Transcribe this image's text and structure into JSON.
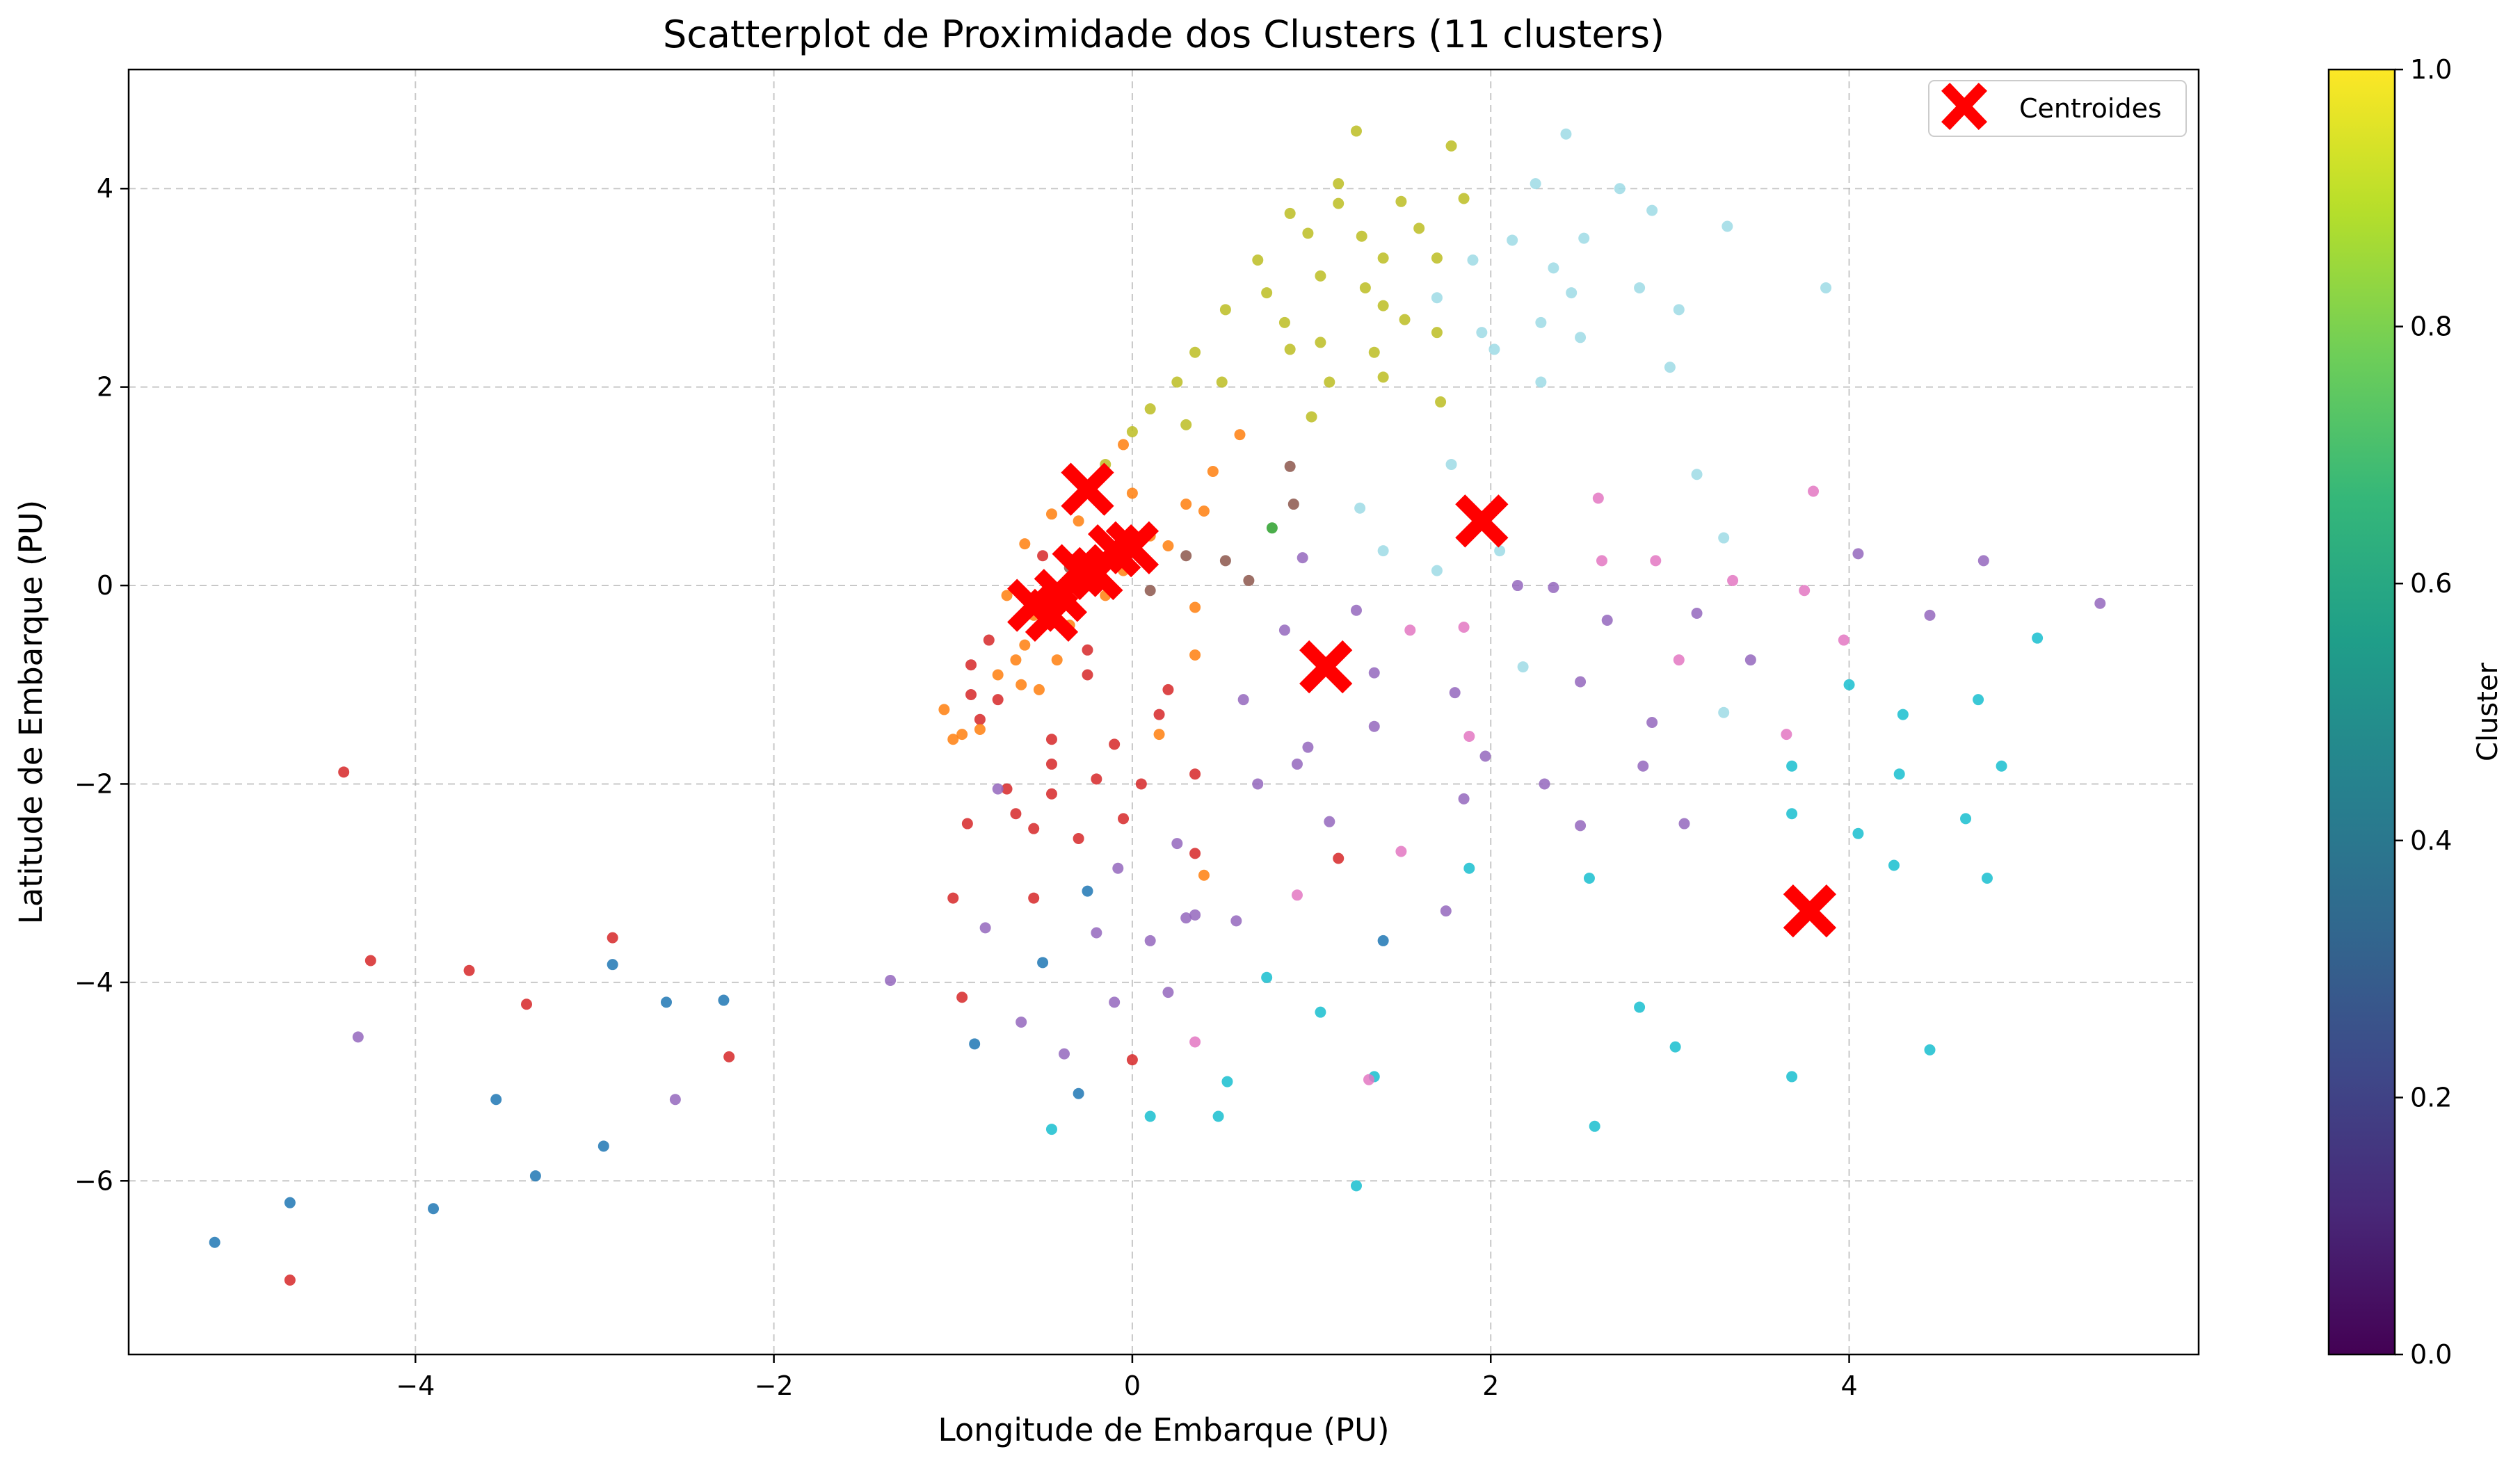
{
  "chart_data": {
    "type": "scatter",
    "title": "Scatterplot de Proximidade dos Clusters (11 clusters)",
    "xlabel": "Longitude de Embarque (PU)",
    "ylabel": "Latitude de Embarque (PU)",
    "xlim": [
      -5.6,
      5.95
    ],
    "ylim": [
      -7.75,
      5.2
    ],
    "xticks": [
      -4,
      -2,
      0,
      2,
      4
    ],
    "yticks": [
      -6,
      -4,
      -2,
      0,
      2,
      4
    ],
    "xtick_labels": [
      "−4",
      "−2",
      "0",
      "2",
      "4"
    ],
    "ytick_labels": [
      "−6",
      "−4",
      "−2",
      "0",
      "2",
      "4"
    ],
    "grid": true,
    "legend": {
      "position": "top-right",
      "entries": [
        "Centroides"
      ]
    },
    "colorbar": {
      "label": "Cluster",
      "range": [
        0,
        1
      ],
      "ticks": [
        0.0,
        0.2,
        0.4,
        0.6,
        0.8,
        1.0
      ],
      "tick_labels": [
        "0.0",
        "0.2",
        "0.4",
        "0.6",
        "0.8",
        "1.0"
      ],
      "colormap": [
        "#440154",
        "#482878",
        "#3e4989",
        "#31688e",
        "#26828e",
        "#1f9e89",
        "#35b779",
        "#6ece58",
        "#b5de2b",
        "#fde725"
      ]
    },
    "cluster_colors": {
      "red": "#d62728",
      "orange": "#ff7f0e",
      "olive": "#bcbd22",
      "lightblue": "#9edae5",
      "cyan": "#17becf",
      "purple": "#9467bd",
      "blue": "#1f77b4",
      "brown": "#8c564b",
      "pink": "#e377c2",
      "green": "#2ca02c"
    },
    "centroids": {
      "color": "#ff0000",
      "points": [
        [
          -0.25,
          0.97
        ],
        [
          -0.1,
          0.35
        ],
        [
          0.0,
          0.38
        ],
        [
          -0.3,
          0.15
        ],
        [
          -0.2,
          0.12
        ],
        [
          -0.4,
          -0.1
        ],
        [
          -0.55,
          -0.2
        ],
        [
          -0.45,
          -0.3
        ],
        [
          1.08,
          -0.82
        ],
        [
          1.95,
          0.65
        ],
        [
          3.78,
          -3.28
        ]
      ]
    },
    "series": [
      {
        "color_key": "red",
        "points": [
          [
            -4.4,
            -1.88
          ],
          [
            -4.25,
            -3.78
          ],
          [
            -3.7,
            -3.88
          ],
          [
            -3.38,
            -4.22
          ],
          [
            -2.9,
            -3.55
          ],
          [
            -2.25,
            -4.75
          ],
          [
            -4.7,
            -7.0
          ],
          [
            -0.95,
            -4.15
          ],
          [
            -1.0,
            -3.15
          ],
          [
            -0.92,
            -2.4
          ],
          [
            -0.65,
            -2.3
          ],
          [
            -0.55,
            -2.45
          ],
          [
            -0.55,
            -3.15
          ],
          [
            -0.45,
            -2.1
          ],
          [
            -0.3,
            -2.55
          ],
          [
            -0.2,
            -1.95
          ],
          [
            -0.1,
            -1.6
          ],
          [
            -0.05,
            -2.35
          ],
          [
            0.05,
            -2.0
          ],
          [
            0.0,
            -4.78
          ],
          [
            0.35,
            -2.7
          ],
          [
            0.35,
            -1.9
          ],
          [
            0.15,
            -1.3
          ],
          [
            0.2,
            -1.05
          ],
          [
            -0.45,
            -1.55
          ],
          [
            -0.25,
            -0.9
          ],
          [
            -0.25,
            -0.65
          ],
          [
            -0.5,
            0.3
          ],
          [
            -0.8,
            -0.55
          ],
          [
            -0.9,
            -0.8
          ],
          [
            -0.9,
            -1.1
          ],
          [
            -0.75,
            -1.15
          ],
          [
            -0.7,
            -2.05
          ],
          [
            1.15,
            -2.75
          ],
          [
            -0.85,
            -1.35
          ],
          [
            -0.45,
            -1.8
          ]
        ]
      },
      {
        "color_key": "orange",
        "points": [
          [
            -1.05,
            -1.25
          ],
          [
            -1.0,
            -1.55
          ],
          [
            -0.95,
            -1.5
          ],
          [
            -0.85,
            -1.45
          ],
          [
            -0.75,
            -0.9
          ],
          [
            -0.7,
            -0.1
          ],
          [
            -0.65,
            -0.75
          ],
          [
            -0.62,
            -1.0
          ],
          [
            -0.6,
            -0.6
          ],
          [
            -0.6,
            0.42
          ],
          [
            -0.55,
            -0.3
          ],
          [
            -0.52,
            -1.05
          ],
          [
            -0.45,
            0.72
          ],
          [
            -0.42,
            -0.75
          ],
          [
            -0.35,
            -0.4
          ],
          [
            -0.3,
            0.65
          ],
          [
            -0.25,
            0.05
          ],
          [
            -0.2,
            0.3
          ],
          [
            -0.15,
            -0.1
          ],
          [
            -0.05,
            1.42
          ],
          [
            0.0,
            0.93
          ],
          [
            0.1,
            0.5
          ],
          [
            0.2,
            0.4
          ],
          [
            0.3,
            0.82
          ],
          [
            0.4,
            0.75
          ],
          [
            0.35,
            -0.22
          ],
          [
            0.35,
            -0.7
          ],
          [
            0.6,
            1.52
          ],
          [
            0.4,
            -2.92
          ],
          [
            0.15,
            -1.5
          ],
          [
            0.45,
            1.15
          ],
          [
            -0.05,
            0.15
          ]
        ]
      },
      {
        "color_key": "olive",
        "points": [
          [
            -0.15,
            1.22
          ],
          [
            0.0,
            1.55
          ],
          [
            0.1,
            1.78
          ],
          [
            0.25,
            2.05
          ],
          [
            0.3,
            1.62
          ],
          [
            0.35,
            2.35
          ],
          [
            0.5,
            2.05
          ],
          [
            0.52,
            2.78
          ],
          [
            0.7,
            3.28
          ],
          [
            0.75,
            2.95
          ],
          [
            0.85,
            2.65
          ],
          [
            0.88,
            2.38
          ],
          [
            0.88,
            3.75
          ],
          [
            0.98,
            3.55
          ],
          [
            1.05,
            3.12
          ],
          [
            1.05,
            2.45
          ],
          [
            1.1,
            2.05
          ],
          [
            1.0,
            1.7
          ],
          [
            1.15,
            4.05
          ],
          [
            1.15,
            3.85
          ],
          [
            1.25,
            4.58
          ],
          [
            1.28,
            3.52
          ],
          [
            1.3,
            3.0
          ],
          [
            1.35,
            2.35
          ],
          [
            1.4,
            2.1
          ],
          [
            1.4,
            3.3
          ],
          [
            1.4,
            2.82
          ],
          [
            1.5,
            3.87
          ],
          [
            1.52,
            2.68
          ],
          [
            1.6,
            3.6
          ],
          [
            1.7,
            3.3
          ],
          [
            1.7,
            2.55
          ],
          [
            1.72,
            1.85
          ],
          [
            1.78,
            4.43
          ],
          [
            1.85,
            3.9
          ]
        ]
      },
      {
        "color_key": "lightblue",
        "points": [
          [
            1.7,
            2.9
          ],
          [
            1.78,
            1.22
          ],
          [
            1.9,
            3.28
          ],
          [
            1.95,
            2.55
          ],
          [
            2.02,
            2.38
          ],
          [
            2.12,
            3.48
          ],
          [
            2.25,
            4.05
          ],
          [
            2.28,
            2.65
          ],
          [
            2.28,
            2.05
          ],
          [
            2.35,
            3.2
          ],
          [
            2.42,
            4.55
          ],
          [
            2.45,
            2.95
          ],
          [
            2.5,
            2.5
          ],
          [
            2.52,
            3.5
          ],
          [
            2.72,
            4.0
          ],
          [
            2.83,
            3.0
          ],
          [
            2.9,
            3.78
          ],
          [
            3.0,
            2.2
          ],
          [
            3.05,
            2.78
          ],
          [
            3.32,
            3.62
          ],
          [
            3.87,
            3.0
          ],
          [
            1.27,
            0.78
          ],
          [
            1.4,
            0.35
          ],
          [
            1.7,
            0.15
          ],
          [
            2.05,
            0.35
          ],
          [
            3.15,
            1.12
          ],
          [
            3.3,
            0.48
          ],
          [
            2.18,
            -0.82
          ],
          [
            3.3,
            -1.28
          ]
        ]
      },
      {
        "color_key": "cyan",
        "points": [
          [
            -0.45,
            -5.48
          ],
          [
            0.1,
            -5.35
          ],
          [
            0.48,
            -5.35
          ],
          [
            0.53,
            -5.0
          ],
          [
            0.75,
            -3.95
          ],
          [
            1.05,
            -4.3
          ],
          [
            1.25,
            -6.05
          ],
          [
            1.35,
            -4.95
          ],
          [
            1.88,
            -2.85
          ],
          [
            2.55,
            -2.95
          ],
          [
            2.58,
            -5.45
          ],
          [
            2.83,
            -4.25
          ],
          [
            3.03,
            -4.65
          ],
          [
            3.68,
            -4.95
          ],
          [
            3.68,
            -1.82
          ],
          [
            3.68,
            -2.3
          ],
          [
            4.0,
            -1.0
          ],
          [
            4.05,
            -2.5
          ],
          [
            4.25,
            -2.82
          ],
          [
            4.28,
            -1.9
          ],
          [
            4.3,
            -1.3
          ],
          [
            4.45,
            -4.68
          ],
          [
            4.65,
            -2.35
          ],
          [
            4.72,
            -1.15
          ],
          [
            4.77,
            -2.95
          ],
          [
            4.85,
            -1.82
          ],
          [
            5.05,
            -0.53
          ]
        ]
      },
      {
        "color_key": "purple",
        "points": [
          [
            -0.82,
            -3.45
          ],
          [
            -0.75,
            -2.05
          ],
          [
            -0.62,
            -4.4
          ],
          [
            -0.38,
            -4.72
          ],
          [
            -0.2,
            -3.5
          ],
          [
            -0.1,
            -4.2
          ],
          [
            -0.08,
            -2.85
          ],
          [
            0.1,
            -3.58
          ],
          [
            0.2,
            -4.1
          ],
          [
            0.3,
            -3.35
          ],
          [
            0.62,
            -1.15
          ],
          [
            0.7,
            -2.0
          ],
          [
            0.92,
            -1.8
          ],
          [
            0.98,
            -1.63
          ],
          [
            1.1,
            -2.38
          ],
          [
            1.25,
            -0.25
          ],
          [
            1.35,
            -0.88
          ],
          [
            1.35,
            -1.42
          ],
          [
            1.75,
            -3.28
          ],
          [
            1.8,
            -1.08
          ],
          [
            1.85,
            -2.15
          ],
          [
            1.97,
            -1.72
          ],
          [
            2.15,
            0.0
          ],
          [
            2.3,
            -2.0
          ],
          [
            2.35,
            -0.02
          ],
          [
            2.5,
            -2.42
          ],
          [
            2.5,
            -0.97
          ],
          [
            2.65,
            -0.35
          ],
          [
            2.85,
            -1.82
          ],
          [
            2.9,
            -1.38
          ],
          [
            3.08,
            -2.4
          ],
          [
            3.15,
            -0.28
          ],
          [
            3.45,
            -0.75
          ],
          [
            4.05,
            0.32
          ],
          [
            4.45,
            -0.3
          ],
          [
            4.75,
            0.25
          ],
          [
            5.4,
            -0.18
          ],
          [
            0.85,
            -0.45
          ],
          [
            -1.35,
            -3.98
          ],
          [
            -4.32,
            -4.55
          ],
          [
            -2.55,
            -5.18
          ],
          [
            0.95,
            0.28
          ],
          [
            0.35,
            -3.32
          ],
          [
            0.25,
            -2.6
          ],
          [
            0.58,
            -3.38
          ]
        ]
      },
      {
        "color_key": "blue",
        "points": [
          [
            -5.12,
            -6.62
          ],
          [
            -4.7,
            -6.22
          ],
          [
            -3.9,
            -6.28
          ],
          [
            -3.55,
            -5.18
          ],
          [
            -3.33,
            -5.95
          ],
          [
            -2.95,
            -5.65
          ],
          [
            -2.9,
            -3.82
          ],
          [
            -2.6,
            -4.2
          ],
          [
            -2.28,
            -4.18
          ],
          [
            -0.88,
            -4.62
          ],
          [
            -0.5,
            -3.8
          ],
          [
            -0.3,
            -5.12
          ],
          [
            -0.25,
            -3.08
          ],
          [
            1.4,
            -3.58
          ]
        ]
      },
      {
        "color_key": "brown",
        "points": [
          [
            0.88,
            1.2
          ],
          [
            0.9,
            0.82
          ],
          [
            0.52,
            0.25
          ],
          [
            0.65,
            0.05
          ],
          [
            0.3,
            0.3
          ],
          [
            0.1,
            -0.05
          ],
          [
            -0.35,
            0.18
          ]
        ]
      },
      {
        "color_key": "pink",
        "points": [
          [
            1.5,
            -2.68
          ],
          [
            1.88,
            -1.52
          ],
          [
            1.85,
            -0.42
          ],
          [
            2.6,
            0.88
          ],
          [
            2.62,
            0.25
          ],
          [
            2.92,
            0.25
          ],
          [
            3.05,
            -0.75
          ],
          [
            3.35,
            0.05
          ],
          [
            3.65,
            -1.5
          ],
          [
            3.75,
            -0.05
          ],
          [
            3.8,
            0.95
          ],
          [
            3.97,
            -0.55
          ],
          [
            1.55,
            -0.45
          ],
          [
            0.35,
            -4.6
          ],
          [
            0.92,
            -3.12
          ],
          [
            1.32,
            -4.98
          ]
        ]
      },
      {
        "color_key": "green",
        "points": [
          [
            0.78,
            0.58
          ]
        ]
      }
    ]
  }
}
